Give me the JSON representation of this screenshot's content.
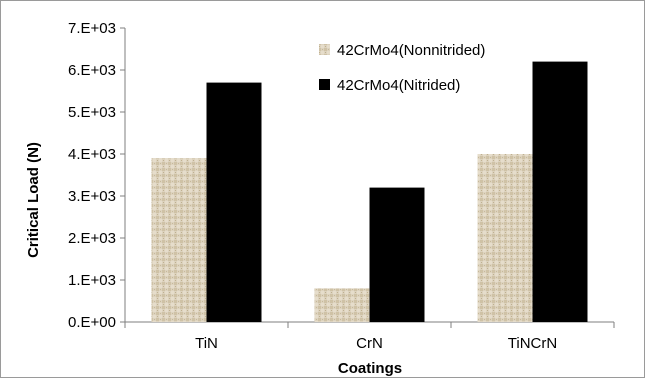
{
  "chart_data": {
    "type": "bar",
    "title": "",
    "xlabel": "Coatings",
    "ylabel": "Critical Load (N)",
    "categories": [
      "TiN",
      "CrN",
      "TiNCrN"
    ],
    "series": [
      {
        "name": "42CrMo4(Nonnitrided)",
        "values": [
          3900,
          800,
          4000
        ],
        "color": "#d9cdb6",
        "pattern": "woven-texture"
      },
      {
        "name": "42CrMo4(Nitrided)",
        "values": [
          5700,
          3200,
          6200
        ],
        "color": "#000000"
      }
    ],
    "ylim": [
      0,
      7000
    ],
    "yticks": [
      0,
      1000,
      2000,
      3000,
      4000,
      5000,
      6000,
      7000
    ],
    "ytick_labels": [
      "0.E+00",
      "1.E+03",
      "2.E+03",
      "3.E+03",
      "4.E+03",
      "5.E+03",
      "6.E+03",
      "7.E+03"
    ],
    "grid": false,
    "legend_position": "top-center"
  }
}
